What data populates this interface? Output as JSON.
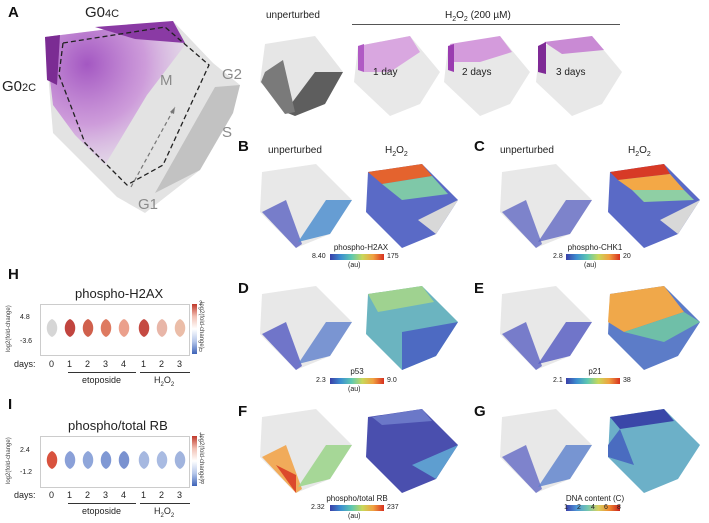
{
  "panel_a": {
    "letter": "A",
    "labels": {
      "g04c": "G0",
      "g04c_sub": "4C",
      "g02c": "G0",
      "g02c_sub": "2C",
      "m": "M",
      "g2": "G2",
      "s": "S",
      "g1": "G1"
    },
    "unperturbed": "unperturbed",
    "treatment": "H",
    "treatment_sub": "2",
    "treatment_rest": "O",
    "treatment_sub2": "2",
    "treatment_conc": " (200 µM)",
    "days": [
      "1 day",
      "2 days",
      "3 days"
    ]
  },
  "panels": [
    {
      "letter": "B",
      "left": "unperturbed",
      "right_main": "H",
      "right_sub": "2",
      "right_mid": "O",
      "right_sub2": "2",
      "marker": "phospho-H2AX",
      "min": "8.40",
      "max": "175",
      "unit": "(au)"
    },
    {
      "letter": "C",
      "left": "unperturbed",
      "right_main": "H",
      "right_sub": "2",
      "right_mid": "O",
      "right_sub2": "2",
      "marker": "phospho-CHK1",
      "min": "2.8",
      "max": "20",
      "unit": "(au)"
    },
    {
      "letter": "D",
      "marker": "p53",
      "min": "2.3",
      "max": "9.0",
      "unit": "(au)"
    },
    {
      "letter": "E",
      "marker": "p21",
      "min": "2.1",
      "max": "38",
      "unit": "(au)"
    },
    {
      "letter": "F",
      "marker": "phospho/total RB",
      "min": "2.32",
      "max": "237",
      "unit": "(au)"
    },
    {
      "letter": "G",
      "marker": "DNA content (C)",
      "ticks": [
        "1",
        "2",
        "4",
        "6",
        "8"
      ]
    }
  ],
  "panel_h": {
    "letter": "H",
    "title": "phospho-H2AX",
    "ylabel": "log2(fold-change)",
    "yticks": [
      "4.8",
      "-3.6"
    ],
    "side_label": "log2(fold-change)",
    "side_top": "2",
    "side_bottom": "0",
    "days_label": "days:",
    "days": [
      "0",
      "1",
      "2",
      "3",
      "4",
      "1",
      "2",
      "3"
    ],
    "group1": "etoposide",
    "group2_main": "H",
    "group2_sub": "2",
    "group2_mid": "O",
    "group2_sub2": "2",
    "violin_colors": [
      "#d6d6d6",
      "#c1453f",
      "#d0604c",
      "#de7a60",
      "#eba08c",
      "#c54a42",
      "#e8b6a8",
      "#ebbda8"
    ]
  },
  "panel_i": {
    "letter": "I",
    "title": "phospho/total RB",
    "ylabel": "log2(fold-change)",
    "yticks": [
      "2.4",
      "-1.2"
    ],
    "side_label": "log2(fold-change)",
    "side_top": "1",
    "side_bottom": "-8",
    "days_label": "days:",
    "days": [
      "0",
      "1",
      "2",
      "3",
      "4",
      "1",
      "2",
      "3"
    ],
    "group1": "etoposide",
    "group2_main": "H",
    "group2_sub": "2",
    "group2_mid": "O",
    "group2_sub2": "2",
    "violin_colors": [
      "#d8523e",
      "#8aa0d8",
      "#8fa6da",
      "#7f98d4",
      "#7a92d0",
      "#a6b8e0",
      "#a9bbe2",
      "#a1b4de"
    ]
  }
}
